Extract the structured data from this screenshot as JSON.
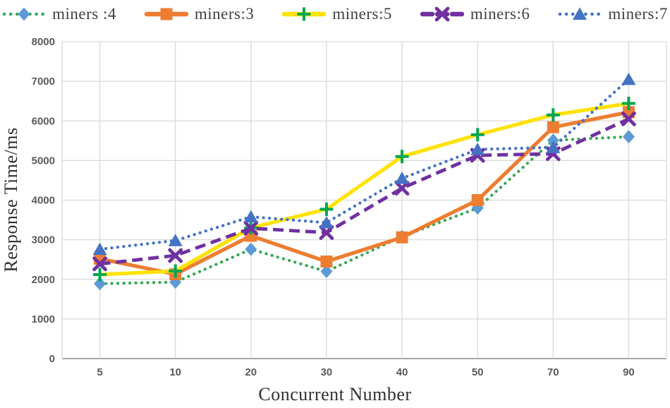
{
  "chart_data": {
    "type": "line",
    "title": "",
    "xlabel": "Concurrent Number",
    "ylabel": "Response Time/ms",
    "categories": [
      "5",
      "10",
      "20",
      "30",
      "40",
      "50",
      "70",
      "90"
    ],
    "ylim": [
      0,
      8000
    ],
    "yticks": [
      0,
      1000,
      2000,
      3000,
      4000,
      5000,
      6000,
      7000,
      8000
    ],
    "grid": true,
    "legend_position": "top",
    "series": [
      {
        "name": "miners :4",
        "line_color": "#34A853",
        "line_style": "dotted",
        "marker": "diamond",
        "marker_color": "#5B9BD5",
        "values": [
          1890,
          1930,
          2760,
          2200,
          3080,
          3800,
          5510,
          5600
        ]
      },
      {
        "name": "miners:3",
        "line_color": "#ED7D31",
        "line_style": "solid",
        "marker": "square",
        "marker_color": "#ED7D31",
        "values": [
          2520,
          2130,
          3100,
          2450,
          3060,
          4000,
          5840,
          6220
        ]
      },
      {
        "name": "miners:5",
        "line_color": "#FFE205",
        "line_style": "solid",
        "marker": "plus",
        "marker_color": "#00A650",
        "values": [
          2120,
          2210,
          3300,
          3770,
          5100,
          5650,
          6150,
          6440
        ]
      },
      {
        "name": "miners:6",
        "line_color": "#7030A0",
        "line_style": "dashed",
        "marker": "x",
        "marker_color": "#7030A0",
        "values": [
          2390,
          2600,
          3290,
          3180,
          4300,
          5130,
          5170,
          6050
        ]
      },
      {
        "name": "miners:7",
        "line_color": "#4472C4",
        "line_style": "dotted",
        "marker": "triangle",
        "marker_color": "#4472C4",
        "values": [
          2760,
          2980,
          3580,
          3430,
          4550,
          5280,
          5330,
          7050
        ]
      }
    ],
    "colors": {
      "gridline": "#D9D9D9",
      "axis_line": "#A6A6A6",
      "tick_label": "#595959",
      "axis_title": "#303030",
      "legend_text": "#404040",
      "background": "#FFFFFF"
    }
  }
}
